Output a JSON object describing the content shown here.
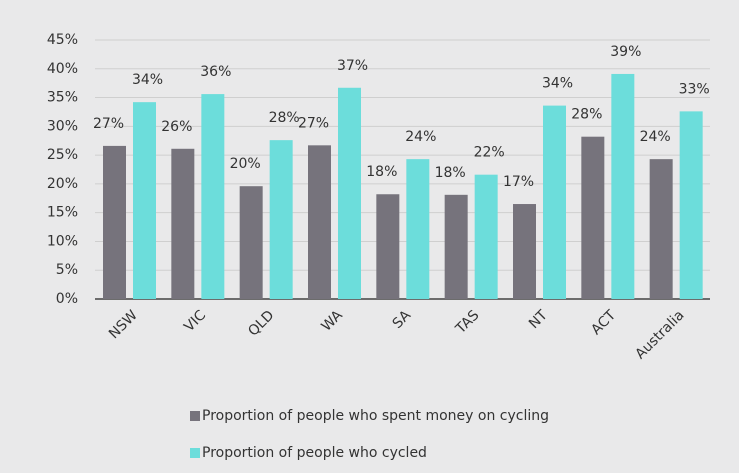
{
  "chart_data": {
    "type": "bar",
    "categories": [
      "NSW",
      "VIC",
      "QLD",
      "WA",
      "SA",
      "TAS",
      "NT",
      "ACT",
      "Australia"
    ],
    "series": [
      {
        "name": "Proportion of people who spent money on cycling",
        "color": "#76737c",
        "values": [
          26.6,
          26.1,
          19.6,
          26.7,
          18.2,
          18.1,
          16.5,
          28.2,
          24.3
        ],
        "value_labels": [
          "27%",
          "26%",
          "20%",
          "27%",
          "18%",
          "18%",
          "17%",
          "28%",
          "24%"
        ]
      },
      {
        "name": "Proportion of people who cycled",
        "color": "#6cdddb",
        "values": [
          34.2,
          35.6,
          27.6,
          36.7,
          24.3,
          21.6,
          33.6,
          39.1,
          32.6
        ],
        "value_labels": [
          "34%",
          "36%",
          "28%",
          "37%",
          "24%",
          "22%",
          "34%",
          "39%",
          "33%"
        ]
      }
    ],
    "ylim": [
      0,
      45
    ],
    "yticks": [
      {
        "value": 0,
        "label": "0%"
      },
      {
        "value": 5,
        "label": "5%"
      },
      {
        "value": 10,
        "label": "10%"
      },
      {
        "value": 15,
        "label": "15%"
      },
      {
        "value": 20,
        "label": "20%"
      },
      {
        "value": 25,
        "label": "25%"
      },
      {
        "value": 30,
        "label": "30%"
      },
      {
        "value": 35,
        "label": "35%"
      },
      {
        "value": 40,
        "label": "40%"
      },
      {
        "value": 45,
        "label": "45%"
      }
    ],
    "grid": true
  }
}
